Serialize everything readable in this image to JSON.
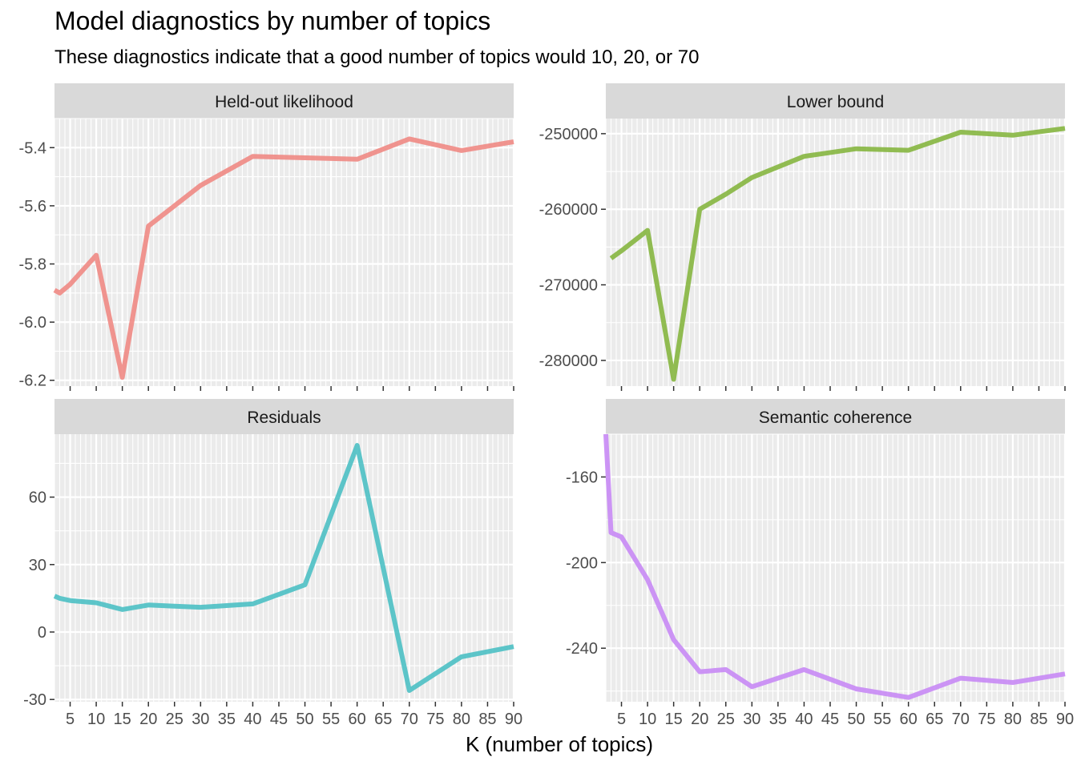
{
  "page": {
    "title": "Model diagnostics by number of topics",
    "subtitle": "These diagnostics indicate that a good number of topics would 10, 20, or 70",
    "xlabel": "K (number of topics)"
  },
  "chart_data": [
    {
      "type": "line",
      "title": "Held-out likelihood",
      "color": "#f08a84",
      "x": [
        2,
        3,
        5,
        10,
        15,
        20,
        25,
        30,
        40,
        50,
        60,
        70,
        80,
        90
      ],
      "values": [
        -5.89,
        -5.9,
        -5.87,
        -5.77,
        -6.19,
        -5.67,
        -5.6,
        -5.53,
        -5.43,
        -5.435,
        -5.44,
        -5.37,
        -5.41,
        -5.38
      ],
      "ylim": [
        -6.22,
        -5.3
      ],
      "yticks": [
        -6.2,
        -6.0,
        -5.8,
        -5.6,
        -5.4
      ],
      "ytick_labels": [
        "-6.2",
        "-6.0",
        "-5.8",
        "-5.6",
        "-5.4"
      ]
    },
    {
      "type": "line",
      "title": "Lower bound",
      "color": "#86b640",
      "x": [
        3,
        5,
        10,
        15,
        20,
        25,
        30,
        40,
        50,
        60,
        70,
        80,
        90
      ],
      "values": [
        -266500,
        -265500,
        -262800,
        -282500,
        -260000,
        -258000,
        -255800,
        -253000,
        -252000,
        -252200,
        -249800,
        -250200,
        -249300
      ],
      "ylim": [
        -283400,
        -248000
      ],
      "yticks": [
        -280000,
        -270000,
        -260000,
        -250000
      ],
      "ytick_labels": [
        "-280000",
        "-270000",
        "-260000",
        "-250000"
      ]
    },
    {
      "type": "line",
      "title": "Residuals",
      "color": "#4dc0c4",
      "x": [
        2,
        3,
        5,
        10,
        15,
        20,
        25,
        30,
        40,
        50,
        60,
        70,
        80,
        90
      ],
      "values": [
        16,
        15,
        14,
        13,
        10,
        12,
        11.5,
        11,
        12.5,
        21,
        83,
        -26,
        -11,
        -6.5
      ],
      "ylim": [
        -31,
        88
      ],
      "yticks": [
        -30,
        0,
        30,
        60
      ],
      "ytick_labels": [
        "-30",
        "0",
        "30",
        "60"
      ]
    },
    {
      "type": "line",
      "title": "Semantic coherence",
      "color": "#c88af5",
      "x": [
        2,
        3,
        5,
        10,
        15,
        20,
        25,
        30,
        40,
        50,
        60,
        70,
        80,
        90
      ],
      "values": [
        -140,
        -186,
        -188,
        -208,
        -236,
        -251,
        -250,
        -258,
        -250,
        -259,
        -263,
        -254,
        -256,
        -252
      ],
      "ylim": [
        -265,
        -140
      ],
      "yticks": [
        -240,
        -200,
        -160
      ],
      "ytick_labels": [
        "-240",
        "-200",
        "-160"
      ]
    }
  ],
  "x_axis": {
    "xlim": [
      2,
      90
    ],
    "ticks": [
      5,
      10,
      15,
      20,
      25,
      30,
      35,
      40,
      45,
      50,
      55,
      60,
      65,
      70,
      75,
      80,
      85,
      90
    ],
    "tick_labels": [
      "5",
      "10",
      "15",
      "20",
      "25",
      "30",
      "35",
      "40",
      "45",
      "50",
      "55",
      "60",
      "65",
      "70",
      "75",
      "80",
      "85",
      "90"
    ],
    "grid": true
  },
  "colors": {
    "panel_bg": "#ebebeb",
    "strip_bg": "#d9d9d9",
    "grid": "#ffffff"
  }
}
